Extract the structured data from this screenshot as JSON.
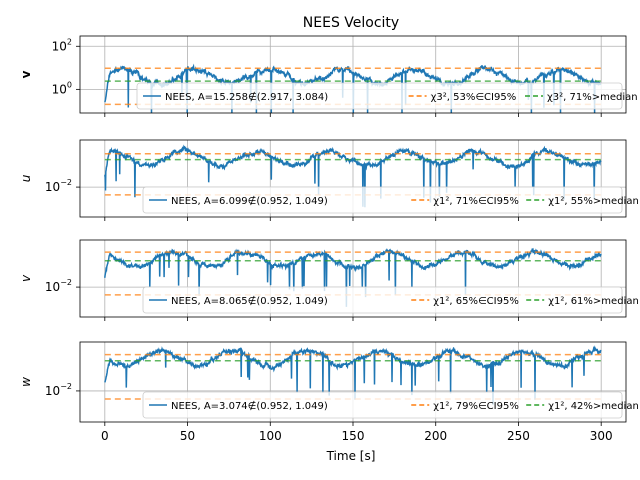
{
  "chart_data": {
    "type": "line",
    "title": "NEES Velocity",
    "xlabel": "Time [s]",
    "xlim": [
      -15,
      315
    ],
    "xticks": [
      0,
      50,
      100,
      150,
      200,
      250,
      300
    ],
    "yscale": "log",
    "grid": true,
    "legend_placement": "lower-right",
    "colors": {
      "nees": "#1f77b4",
      "ci": "#ff7f0e",
      "median": "#2ca02c"
    },
    "panels": [
      {
        "ylabel": "v",
        "ylim": [
          0.08,
          300
        ],
        "yticks": [
          {
            "v": 1,
            "label": "10^0"
          },
          {
            "v": 100,
            "label": "10^2"
          }
        ],
        "ci": [
          0.2,
          9.5
        ],
        "median": 2.4,
        "nees_level": 4,
        "legend": [
          "NEES, A=15.258∉(2.917, 3.084)",
          "χ3², 53%∈CI95%",
          "χ3², 71%>median"
        ]
      },
      {
        "ylabel": "u",
        "ylim": [
          0.0003,
          2.5
        ],
        "yticks": [
          {
            "v": 0.01,
            "label": "10^-2"
          }
        ],
        "ci": [
          0.004,
          0.5
        ],
        "median": 0.25,
        "nees_level": 0.3,
        "legend": [
          "NEES, A=6.099∉(0.952, 1.049)",
          "χ1², 71%∈CI95%",
          "χ1², 55%>median"
        ]
      },
      {
        "ylabel": "v",
        "ylim": [
          0.0003,
          2.5
        ],
        "yticks": [
          {
            "v": 0.01,
            "label": "10^-2"
          }
        ],
        "ci": [
          0.004,
          0.6
        ],
        "median": 0.22,
        "nees_level": 0.25,
        "legend": [
          "NEES, A=8.065∉(0.952, 1.049)",
          "χ1², 65%∈CI95%",
          "χ1², 61%>median"
        ]
      },
      {
        "ylabel": "w",
        "ylim": [
          0.0003,
          2.5
        ],
        "yticks": [
          {
            "v": 0.01,
            "label": "10^-2"
          }
        ],
        "ci": [
          0.004,
          0.6
        ],
        "median": 0.3,
        "nees_level": 0.4,
        "legend": [
          "NEES, A=3.074∉(0.952, 1.049)",
          "χ1², 79%∈CI95%",
          "χ1², 42%>median"
        ]
      }
    ]
  }
}
